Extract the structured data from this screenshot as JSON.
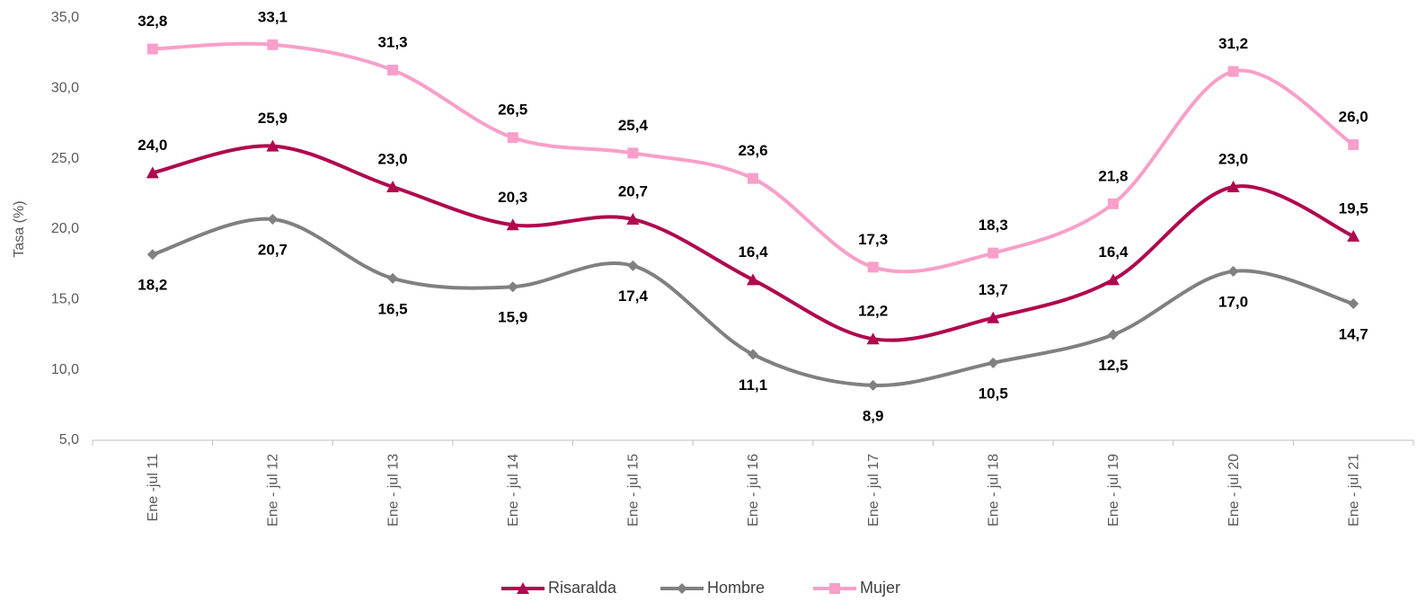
{
  "chart_data": {
    "type": "line",
    "y_label": "Tasa (%)",
    "categories": [
      "Ene -jul 11",
      "Ene - jul 12",
      "Ene - jul 13",
      "Ene - jul 14",
      "Ene - jul 15",
      "Ene - jul 16",
      "Ene - jul 17",
      "Ene - jul 18",
      "Ene - jul 19",
      "Ene - jul 20",
      "Ene - jul 21"
    ],
    "series": [
      {
        "name": "Risaralda",
        "color": "#b0064e",
        "marker": "triangle",
        "values": [
          24.0,
          25.9,
          23.0,
          20.3,
          20.7,
          16.4,
          12.2,
          13.7,
          16.4,
          23.0,
          19.5
        ],
        "value_labels": [
          "24,0",
          "25,9",
          "23,0",
          "20,3",
          "20,7",
          "16,4",
          "12,2",
          "13,7",
          "16,4",
          "23,0",
          "19,5"
        ]
      },
      {
        "name": "Hombre",
        "color": "#808080",
        "marker": "diamond",
        "values": [
          18.2,
          20.7,
          16.5,
          15.9,
          17.4,
          11.1,
          8.9,
          10.5,
          12.5,
          17.0,
          14.7
        ],
        "value_labels": [
          "18,2",
          "20,7",
          "16,5",
          "15,9",
          "17,4",
          "11,1",
          "8,9",
          "10,5",
          "12,5",
          "17,0",
          "14,7"
        ]
      },
      {
        "name": "Mujer",
        "color": "#f99fc9",
        "marker": "square",
        "values": [
          32.8,
          33.1,
          31.3,
          26.5,
          25.4,
          23.6,
          17.3,
          18.3,
          21.8,
          31.2,
          26.0
        ],
        "value_labels": [
          "32,8",
          "33,1",
          "31,3",
          "26,5",
          "25,4",
          "23,6",
          "17,3",
          "18,3",
          "21,8",
          "31,2",
          "26,0"
        ]
      }
    ],
    "ylim": [
      5,
      35
    ],
    "yticks": [
      {
        "value": 5,
        "label": "5,0"
      },
      {
        "value": 10,
        "label": "10,0"
      },
      {
        "value": 15,
        "label": "15,0"
      },
      {
        "value": 20,
        "label": "20,0"
      },
      {
        "value": 25,
        "label": "25,0"
      },
      {
        "value": 30,
        "label": "30,0"
      },
      {
        "value": 35,
        "label": "35,0"
      }
    ],
    "grid": false,
    "smooth": true,
    "legend": "bottom"
  }
}
